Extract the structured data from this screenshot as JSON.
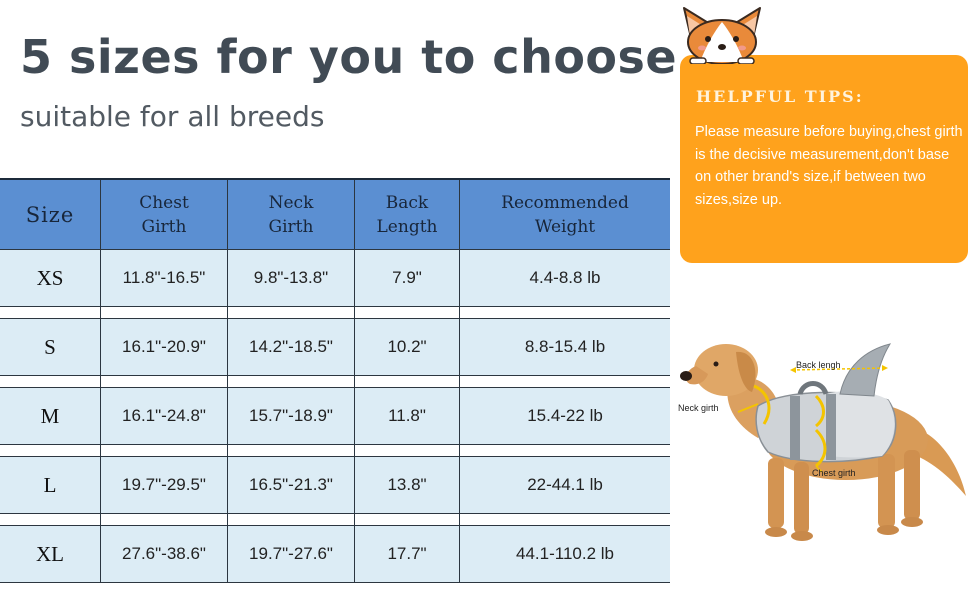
{
  "header": {
    "title": "5 sizes for you to choose",
    "subtitle": "suitable for all breeds"
  },
  "table": {
    "columns": [
      "Size",
      "Chest\nGirth",
      "Neck\nGirth",
      "Back\nLength",
      "Recommended\nWeight"
    ],
    "rows": [
      [
        "XS",
        "11.8\"-16.5\"",
        "9.8\"-13.8\"",
        "7.9\"",
        "4.4-8.8 lb"
      ],
      [
        "S",
        "16.1\"-20.9\"",
        "14.2\"-18.5\"",
        "10.2\"",
        "8.8-15.4 lb"
      ],
      [
        "M",
        "16.1\"-24.8\"",
        "15.7\"-18.9\"",
        "11.8\"",
        "15.4-22 lb"
      ],
      [
        "L",
        "19.7\"-29.5\"",
        "16.5\"-21.3\"",
        "13.8\"",
        "22-44.1 lb"
      ],
      [
        "XL",
        "27.6\"-38.6\"",
        "19.7\"-27.6\"",
        "17.7\"",
        "44.1-110.2 lb"
      ]
    ]
  },
  "tips": {
    "title": "HELPFUL TIPS:",
    "body": "Please measure before buying,chest girth is the decisive measurement,don't base on other brand's size,if between two sizes,size up."
  },
  "illustration": {
    "back_label": "Back lengh",
    "neck_label": "Neck girth",
    "chest_label": "Chest girth"
  },
  "colors": {
    "header_blue": "#5b8fd2",
    "row_blue": "#dcecf5",
    "tips_orange": "#ffa21c",
    "measure_yellow": "#f4c400"
  }
}
